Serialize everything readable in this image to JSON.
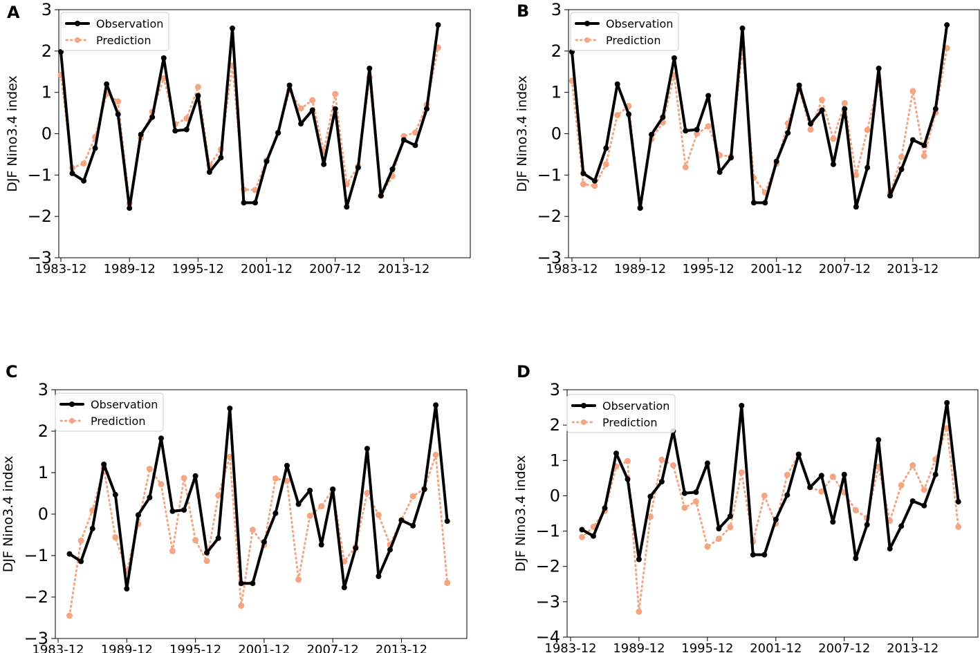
{
  "chart_data": [
    {
      "panel": "A",
      "type": "line",
      "ylabel": "DJF Nino3.4 index",
      "xlabel": "",
      "ylim": [
        -3,
        3
      ],
      "yticks": [
        -3,
        -2,
        -1,
        0,
        1,
        2,
        3
      ],
      "ytick_labels": [
        "−3",
        "−2",
        "−1",
        "0",
        "1",
        "2",
        "3"
      ],
      "xticks": [
        "1983-12",
        "1989-12",
        "1995-12",
        "2001-12",
        "2007-12",
        "2013-12"
      ],
      "legend": [
        "Observation",
        "Prediction"
      ],
      "legend_loc": "top-left",
      "series": [
        {
          "name": "Observation",
          "start_index": 1,
          "values": [
            1.98,
            -0.96,
            -1.14,
            -0.35,
            1.2,
            0.47,
            -1.8,
            -0.02,
            0.4,
            1.83,
            0.07,
            0.1,
            0.92,
            -0.93,
            -0.58,
            2.55,
            -1.67,
            -1.67,
            -0.67,
            0.02,
            1.17,
            0.24,
            0.57,
            -0.74,
            0.6,
            -1.77,
            -0.82,
            1.58,
            -1.5,
            -0.86,
            -0.15,
            -0.28,
            0.6,
            2.63
          ]
        },
        {
          "name": "Prediction",
          "start_index": 1,
          "values": [
            1.42,
            -0.83,
            -0.72,
            -0.08,
            0.96,
            0.78,
            -1.69,
            -0.1,
            0.53,
            1.34,
            0.23,
            0.37,
            1.13,
            -0.76,
            -0.38,
            1.65,
            -1.35,
            -1.36,
            -0.64,
            0.03,
            1.05,
            0.61,
            0.81,
            -0.43,
            0.96,
            -1.22,
            -0.79,
            1.36,
            -1.5,
            -1.03,
            -0.06,
            0.03,
            0.7,
            2.08
          ]
        }
      ]
    },
    {
      "panel": "B",
      "type": "line",
      "ylabel": "DJF Nino3.4 index",
      "xlabel": "",
      "ylim": [
        -3,
        3
      ],
      "yticks": [
        -3,
        -2,
        -1,
        0,
        1,
        2,
        3
      ],
      "ytick_labels": [
        "−3",
        "−2",
        "−1",
        "0",
        "1",
        "2",
        "3"
      ],
      "xticks": [
        "1983-12",
        "1989-12",
        "1995-12",
        "2001-12",
        "2007-12",
        "2013-12"
      ],
      "legend": [
        "Observation",
        "Prediction"
      ],
      "legend_loc": "top-left",
      "series": [
        {
          "name": "Observation",
          "start_index": 1,
          "values": [
            1.98,
            -0.96,
            -1.14,
            -0.35,
            1.2,
            0.47,
            -1.8,
            -0.02,
            0.4,
            1.83,
            0.07,
            0.1,
            0.92,
            -0.93,
            -0.58,
            2.55,
            -1.67,
            -1.67,
            -0.67,
            0.02,
            1.17,
            0.24,
            0.57,
            -0.74,
            0.6,
            -1.77,
            -0.82,
            1.58,
            -1.5,
            -0.86,
            -0.15,
            -0.28,
            0.6,
            2.63
          ]
        },
        {
          "name": "Prediction",
          "start_index": 1,
          "values": [
            1.28,
            -1.22,
            -1.26,
            -0.74,
            0.45,
            0.67,
            -1.79,
            -0.13,
            0.27,
            1.42,
            -0.81,
            0.0,
            0.18,
            -0.52,
            -0.55,
            2.08,
            -1.07,
            -1.42,
            -0.73,
            0.25,
            1.08,
            0.1,
            0.82,
            -0.12,
            0.74,
            -1.0,
            0.09,
            1.29,
            -1.44,
            -0.56,
            1.03,
            -0.54,
            0.51,
            2.07
          ]
        }
      ]
    },
    {
      "panel": "C",
      "type": "line",
      "ylabel": "DJF Nino3.4 index",
      "xlabel": "",
      "ylim": [
        -3,
        3
      ],
      "yticks": [
        -3,
        -2,
        -1,
        0,
        1,
        2,
        3
      ],
      "ytick_labels": [
        "−3",
        "−2",
        "−1",
        "0",
        "1",
        "2",
        "3"
      ],
      "xticks": [
        "1983-12",
        "1989-12",
        "1995-12",
        "2001-12",
        "2007-12",
        "2013-12"
      ],
      "legend": [
        "Observation",
        "Prediction"
      ],
      "legend_loc": "top-left",
      "series": [
        {
          "name": "Observation",
          "start_index": 2,
          "values": [
            -0.96,
            -1.14,
            -0.35,
            1.2,
            0.47,
            -1.8,
            -0.02,
            0.4,
            1.83,
            0.07,
            0.1,
            0.92,
            -0.93,
            -0.58,
            2.55,
            -1.67,
            -1.67,
            -0.67,
            0.02,
            1.17,
            0.24,
            0.57,
            -0.74,
            0.6,
            -1.77,
            -0.82,
            1.58,
            -1.5,
            -0.86,
            -0.15,
            -0.28,
            0.6,
            2.63,
            -0.17
          ]
        },
        {
          "name": "Prediction",
          "start_index": 2,
          "values": [
            -2.45,
            -0.64,
            0.09,
            1.11,
            -0.56,
            -1.37,
            -0.24,
            1.09,
            0.72,
            -0.89,
            0.87,
            -0.63,
            -1.13,
            0.45,
            1.38,
            -2.21,
            -0.38,
            -0.75,
            0.86,
            0.8,
            -1.58,
            -0.04,
            0.19,
            0.59,
            -1.14,
            -0.79,
            0.51,
            -0.02,
            -0.74,
            -0.14,
            0.43,
            0.61,
            1.43,
            -1.66
          ]
        }
      ]
    },
    {
      "panel": "D",
      "type": "line",
      "ylabel": "DJF Nino3.4 index",
      "xlabel": "",
      "ylim": [
        -4,
        3
      ],
      "yticks": [
        -4,
        -3,
        -2,
        -1,
        0,
        1,
        2,
        3
      ],
      "ytick_labels": [
        "−4",
        "−3",
        "−2",
        "−1",
        "0",
        "1",
        "2",
        "3"
      ],
      "xticks": [
        "1983-12",
        "1989-12",
        "1995-12",
        "2001-12",
        "2007-12",
        "2013-12"
      ],
      "legend": [
        "Observation",
        "Prediction"
      ],
      "legend_loc": "top-left",
      "series": [
        {
          "name": "Observation",
          "start_index": 2,
          "values": [
            -0.96,
            -1.14,
            -0.35,
            1.2,
            0.47,
            -1.8,
            -0.02,
            0.4,
            1.83,
            0.07,
            0.1,
            0.92,
            -0.93,
            -0.58,
            2.55,
            -1.67,
            -1.67,
            -0.67,
            0.02,
            1.17,
            0.24,
            0.57,
            -0.74,
            0.6,
            -1.77,
            -0.82,
            1.58,
            -1.5,
            -0.86,
            -0.15,
            -0.28,
            0.6,
            2.63,
            -0.17
          ]
        },
        {
          "name": "Prediction",
          "start_index": 2,
          "values": [
            -1.17,
            -0.88,
            -0.43,
            0.83,
            0.98,
            -3.28,
            -0.59,
            1.02,
            0.86,
            -0.34,
            -0.16,
            -1.44,
            -1.22,
            -0.89,
            0.66,
            -1.3,
            0.0,
            -0.79,
            0.59,
            1.17,
            0.24,
            0.12,
            0.54,
            0.09,
            -0.41,
            -0.63,
            0.82,
            -0.71,
            0.3,
            0.86,
            0.17,
            1.03,
            1.91,
            -0.88
          ]
        }
      ]
    }
  ],
  "colors": {
    "observation": "#000000",
    "prediction": "#f4a582"
  }
}
